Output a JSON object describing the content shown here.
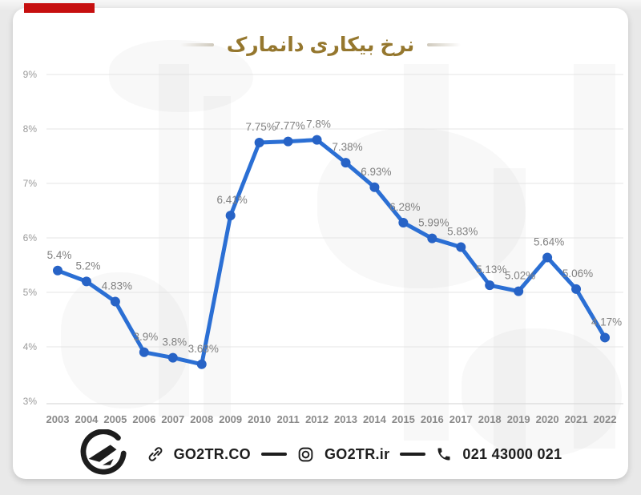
{
  "page": {
    "background_color": "#e9e9e9",
    "card_color": "#ffffff",
    "red_bar_color": "#c60f0f"
  },
  "header": {
    "title": "نرخ بیکاری دانمارک",
    "title_color": "#95772e"
  },
  "chart_data": {
    "type": "line",
    "title": "نرخ بیکاری دانمارک",
    "x": [
      2003,
      2004,
      2005,
      2006,
      2007,
      2008,
      2009,
      2010,
      2011,
      2012,
      2013,
      2014,
      2015,
      2016,
      2017,
      2018,
      2019,
      2020,
      2021,
      2022
    ],
    "values": [
      5.4,
      5.2,
      4.83,
      3.9,
      3.8,
      3.68,
      6.41,
      7.75,
      7.77,
      7.8,
      7.38,
      6.93,
      6.28,
      5.99,
      5.83,
      5.13,
      5.02,
      5.64,
      5.06,
      4.17
    ],
    "point_labels": [
      "5.4%",
      "5.2%",
      "4.83%",
      "3.9%",
      "3.8%",
      "3.68%",
      "6.41%",
      "7.75%",
      "7.77%",
      "7.8%",
      "7.38%",
      "6.93%",
      "6.28%",
      "5.99%",
      "5.83%",
      "5.13%",
      "5.02%",
      "5.64%",
      "5.06%",
      "4.17%"
    ],
    "ylim": [
      3,
      9
    ],
    "ytick_labels": [
      "3%",
      "4%",
      "5%",
      "6%",
      "7%",
      "8%",
      "9%"
    ],
    "grid": true,
    "legend": false,
    "line_color": "#2b6fd4",
    "marker_color": "#2763c6",
    "label_color": "#818181",
    "axis_text_color": "#9b9b9b"
  },
  "footer": {
    "logo": "go2tr-logo",
    "website_label": "GO2TR.CO",
    "instagram_label": "GO2TR.ir",
    "phone_label": "021 43000 021",
    "icons": [
      "link-icon",
      "instagram-icon",
      "phone-icon"
    ]
  }
}
